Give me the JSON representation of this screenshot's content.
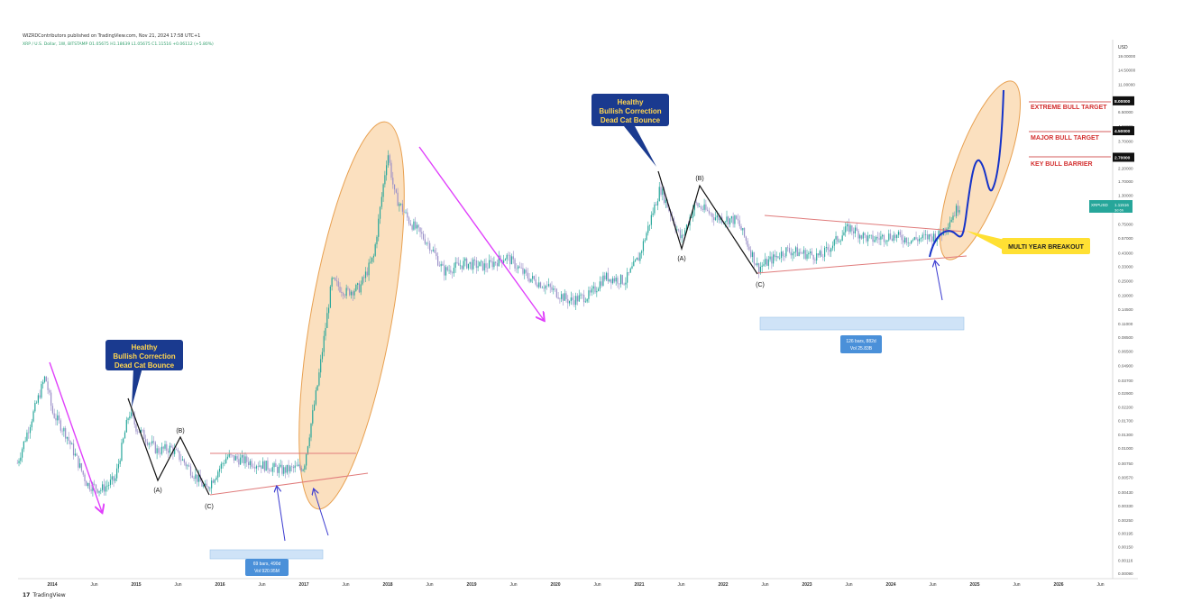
{
  "header": {
    "published": "WIZRDContributors published on TradingView.com, Nov 21, 2024 17:58 UTC+1",
    "symbol_line": "XRP / U.S. Dollar, 1W, BITSTAMP  O1.05675  H1.18639  L1.05675  C1.11516  +0.06112 (+5.80%)"
  },
  "footer": {
    "brand": "TradingView",
    "logo_icon": "tradingview-logo-icon"
  },
  "colors": {
    "candle_up": "#26a69a",
    "candle_down": "#9a8fc8",
    "magenta_arrow": "#e040fb",
    "ellipse_fill": "#f8c68a",
    "ellipse_stroke": "#e8a050",
    "wave_line": "#111111",
    "trendline": "#e07b7b",
    "blue_projection": "#1533c9",
    "callout_bg": "#1a3a8f",
    "callout_text": "#ffd54f",
    "target_text": "#d32f2f",
    "breakout_bg": "#ffe033",
    "range_bg": "#cfe3f7",
    "range_label_bg": "#4a90d9"
  },
  "chart_data": {
    "type": "candlestick",
    "title": "",
    "xlabel": "",
    "ylabel": "USD",
    "y_scale": "log",
    "ylim": [
      0.0009,
      22
    ],
    "grid": false,
    "x_ticks": [
      "2014",
      "Jun",
      "2015",
      "Jun",
      "2016",
      "Jun",
      "2017",
      "Jun",
      "2018",
      "Jun",
      "2019",
      "Jun",
      "2020",
      "Jun",
      "2021",
      "Jun",
      "2022",
      "Jun",
      "2023",
      "Jun",
      "2024",
      "Jun",
      "2025",
      "Jun",
      "2026",
      "Jun"
    ],
    "y_ticks": [
      "19.00000",
      "14.50000",
      "11.00000",
      "6.50000",
      "4.90000",
      "3.70000",
      "2.20000",
      "1.70000",
      "1.30000",
      "0.75000",
      "0.57000",
      "0.43000",
      "0.33000",
      "0.25000",
      "0.19000",
      "0.14500",
      "0.11000",
      "0.08500",
      "0.06500",
      "0.04900",
      "0.03700",
      "0.02900",
      "0.02200",
      "0.01700",
      "0.01300",
      "0.01000",
      "0.00750",
      "0.00570",
      "0.00430",
      "0.00330",
      "0.00250",
      "0.00195",
      "0.00150",
      "0.00116",
      "0.00090"
    ],
    "price_series": {
      "name": "XRPUSD",
      "dates": [
        "2013-08",
        "2013-12",
        "2014-01",
        "2014-03",
        "2014-06",
        "2014-08",
        "2014-10",
        "2014-12",
        "2015-01",
        "2015-04",
        "2015-06",
        "2015-08",
        "2015-11",
        "2016-02",
        "2016-06",
        "2016-10",
        "2017-01",
        "2017-03",
        "2017-05",
        "2017-07",
        "2017-09",
        "2017-11",
        "2018-01",
        "2018-02",
        "2018-04",
        "2018-07",
        "2018-09",
        "2018-12",
        "2019-03",
        "2019-06",
        "2019-09",
        "2019-12",
        "2020-03",
        "2020-06",
        "2020-08",
        "2020-11",
        "2021-01",
        "2021-04",
        "2021-07",
        "2021-09",
        "2021-12",
        "2022-03",
        "2022-06",
        "2022-10",
        "2023-03",
        "2023-07",
        "2023-10",
        "2024-01",
        "2024-04",
        "2024-08",
        "2024-11"
      ],
      "close": [
        0.0075,
        0.04,
        0.02,
        0.013,
        0.005,
        0.0045,
        0.0055,
        0.02,
        0.015,
        0.0095,
        0.01,
        0.0075,
        0.0045,
        0.0085,
        0.0075,
        0.0065,
        0.007,
        0.035,
        0.25,
        0.2,
        0.22,
        0.4,
        3.0,
        1.3,
        0.8,
        0.5,
        0.3,
        0.35,
        0.33,
        0.4,
        0.27,
        0.22,
        0.17,
        0.19,
        0.27,
        0.25,
        0.4,
        1.5,
        0.55,
        1.1,
        0.85,
        0.8,
        0.32,
        0.45,
        0.4,
        0.7,
        0.55,
        0.6,
        0.55,
        0.6,
        1.11516
      ]
    },
    "price_label": {
      "symbol": "XRPUSD",
      "value": "1.11516",
      "countdown": "3d 6h"
    },
    "price_levels": [
      {
        "label": "EXTREME BULL TARGET",
        "value": "8.00000",
        "price": 8.0
      },
      {
        "label": "MAJOR BULL TARGET",
        "value": "4.50000",
        "price": 4.5
      },
      {
        "label": "KEY BULL BARRIER",
        "value": "2.70000",
        "price": 2.7
      }
    ],
    "annotations": {
      "callout_1": {
        "lines": [
          "Healthy",
          "Bullish Correction",
          "Dead Cat Bounce"
        ]
      },
      "callout_2": {
        "lines": [
          "Healthy",
          "Bullish Correction",
          "Dead Cat Bounce"
        ]
      },
      "breakout": "MULTI YEAR BREAKOUT",
      "wave_labels_1": [
        "(A)",
        "(B)",
        "(C)"
      ],
      "wave_labels_2": [
        "(A)",
        "(B)",
        "(C)"
      ],
      "range_1": {
        "bars": "69 bars, 490d",
        "vol": "Vol 920.95M"
      },
      "range_2": {
        "bars": "126 bars, 882d",
        "vol": "Vol 25.83B"
      }
    }
  }
}
